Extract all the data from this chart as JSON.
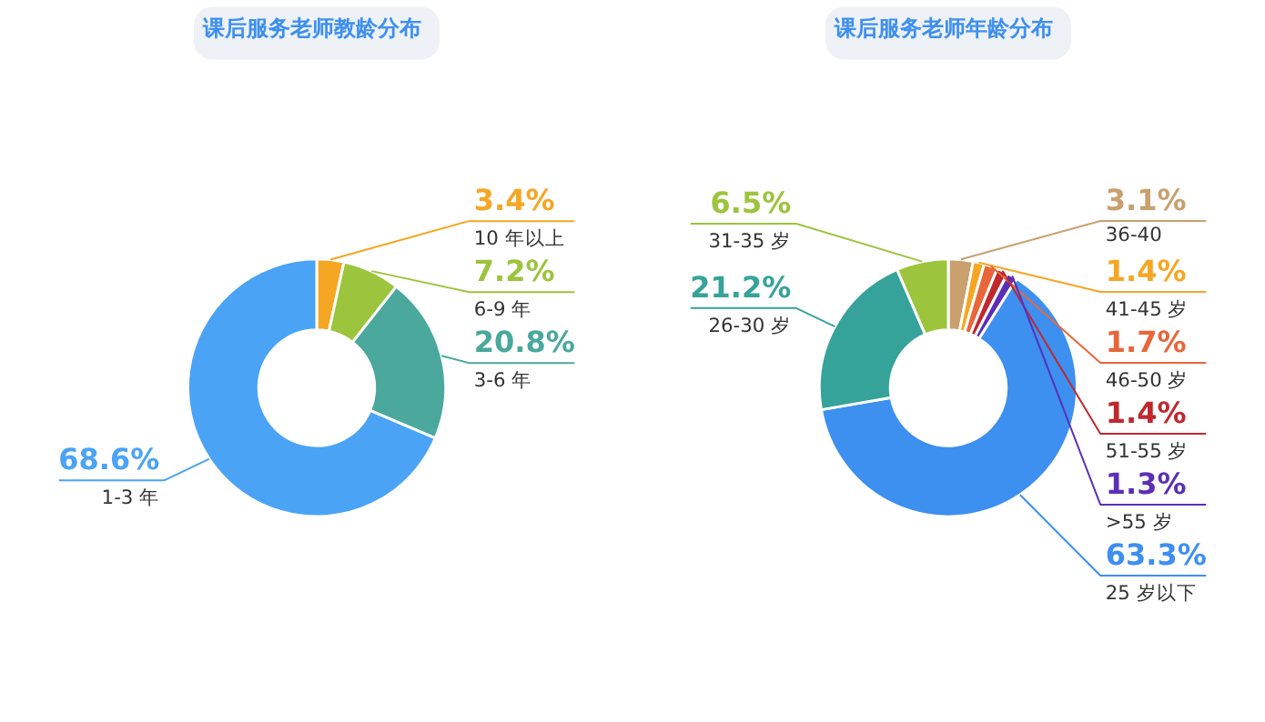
{
  "chart_data": [
    {
      "type": "donut",
      "title": "课后服务老师教龄分布",
      "categories": [
        "10 年以上",
        "6-9 年",
        "3-6 年",
        "1-3 年"
      ],
      "values": [
        3.4,
        7.2,
        20.8,
        68.6
      ],
      "colors": [
        "#f5a623",
        "#9cc43c",
        "#4aa89c",
        "#4aa3f5"
      ],
      "value_labels": [
        "3.4%",
        "7.2%",
        "20.8%",
        "68.6%"
      ],
      "data_labels": true,
      "legend": false
    },
    {
      "type": "donut",
      "title": "课后服务老师年龄分布",
      "categories": [
        "36-40",
        "41-45 岁",
        "46-50 岁",
        "51-55 岁",
        ">55 岁",
        "25 岁以下",
        "26-30 岁",
        "31-35 岁"
      ],
      "values": [
        3.1,
        1.4,
        1.7,
        1.4,
        1.3,
        63.3,
        21.2,
        6.5
      ],
      "colors": [
        "#c9a06e",
        "#f5a623",
        "#e8663a",
        "#c0282e",
        "#5b2fb5",
        "#3d8ff0",
        "#36a39a",
        "#9cc43c"
      ],
      "value_labels": [
        "3.1%",
        "1.4%",
        "1.7%",
        "1.4%",
        "1.3%",
        "63.3%",
        "21.2%",
        "6.5%"
      ],
      "data_labels": true,
      "legend": false
    }
  ]
}
